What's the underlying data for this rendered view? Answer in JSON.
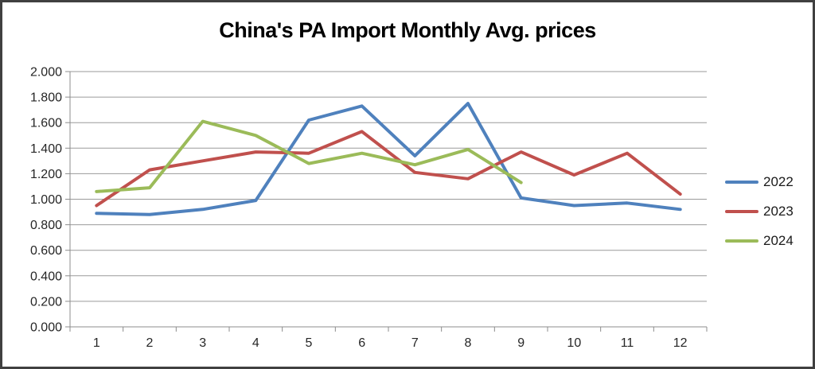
{
  "chart_data": {
    "type": "line",
    "title": "China's PA Import Monthly Avg. prices",
    "categories": [
      "1",
      "2",
      "3",
      "4",
      "5",
      "6",
      "7",
      "8",
      "9",
      "10",
      "11",
      "12"
    ],
    "series": [
      {
        "name": "2022",
        "color": "#4F81BD",
        "values": [
          0.89,
          0.88,
          0.92,
          0.99,
          1.62,
          1.73,
          1.34,
          1.75,
          1.01,
          0.95,
          0.97,
          0.92
        ]
      },
      {
        "name": "2023",
        "color": "#C0504D",
        "values": [
          0.95,
          1.23,
          1.3,
          1.37,
          1.36,
          1.53,
          1.21,
          1.16,
          1.37,
          1.19,
          1.36,
          1.04
        ]
      },
      {
        "name": "2024",
        "color": "#9BBB59",
        "values": [
          1.06,
          1.09,
          1.61,
          1.5,
          1.28,
          1.36,
          1.27,
          1.39,
          1.13,
          null,
          null,
          null
        ]
      }
    ],
    "ylim": [
      0.0,
      2.0
    ],
    "ytick_step": 0.2,
    "ytick_labels": [
      "0.000",
      "0.200",
      "0.400",
      "0.600",
      "0.800",
      "1.000",
      "1.200",
      "1.400",
      "1.600",
      "1.800",
      "2.000"
    ],
    "xlabel": "",
    "ylabel": "",
    "grid": true,
    "legend_position": "right",
    "legend_entries": [
      "2022",
      "2023",
      "2024"
    ],
    "colors": {
      "gridline": "#9a9a9a",
      "axis": "#8c8c8c",
      "tick_label": "#262626",
      "title": "#000000",
      "frame_border": "#404040",
      "background": "#ffffff"
    }
  }
}
